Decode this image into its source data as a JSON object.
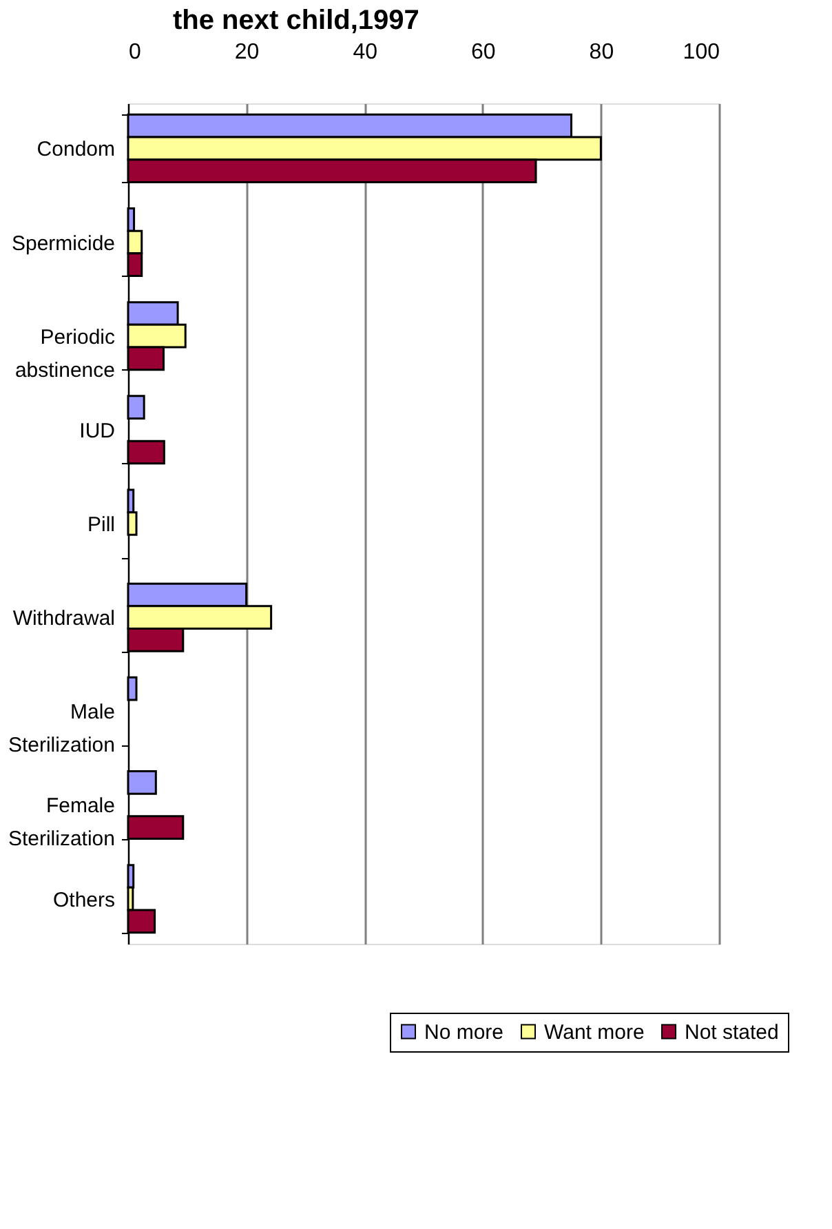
{
  "chart_data": {
    "type": "bar",
    "orientation": "horizontal",
    "title": "the next child,1997",
    "categories": [
      "Condom",
      "Spermicide",
      "Periodic abstinence",
      "IUD",
      "Pill",
      "Withdrawal",
      "Male Sterilization",
      "Female Sterilization",
      "Others"
    ],
    "series": [
      {
        "name": "No more",
        "color": "#9999ff",
        "values": [
          75,
          1,
          8.4,
          2.7,
          0.9,
          20,
          1.4,
          4.7,
          0.9
        ]
      },
      {
        "name": "Want more",
        "color": "#ffff99",
        "values": [
          80,
          2.3,
          9.7,
          null,
          1.4,
          24.2,
          null,
          null,
          0.8
        ]
      },
      {
        "name": "Not stated",
        "color": "#990033",
        "values": [
          69,
          2.3,
          6,
          6.1,
          null,
          9.3,
          null,
          9.3,
          4.5
        ]
      }
    ],
    "xlim": [
      0,
      100
    ],
    "xticks": [
      0,
      20,
      40,
      60,
      80,
      100
    ],
    "grid": "x",
    "legend": "bottom right"
  }
}
